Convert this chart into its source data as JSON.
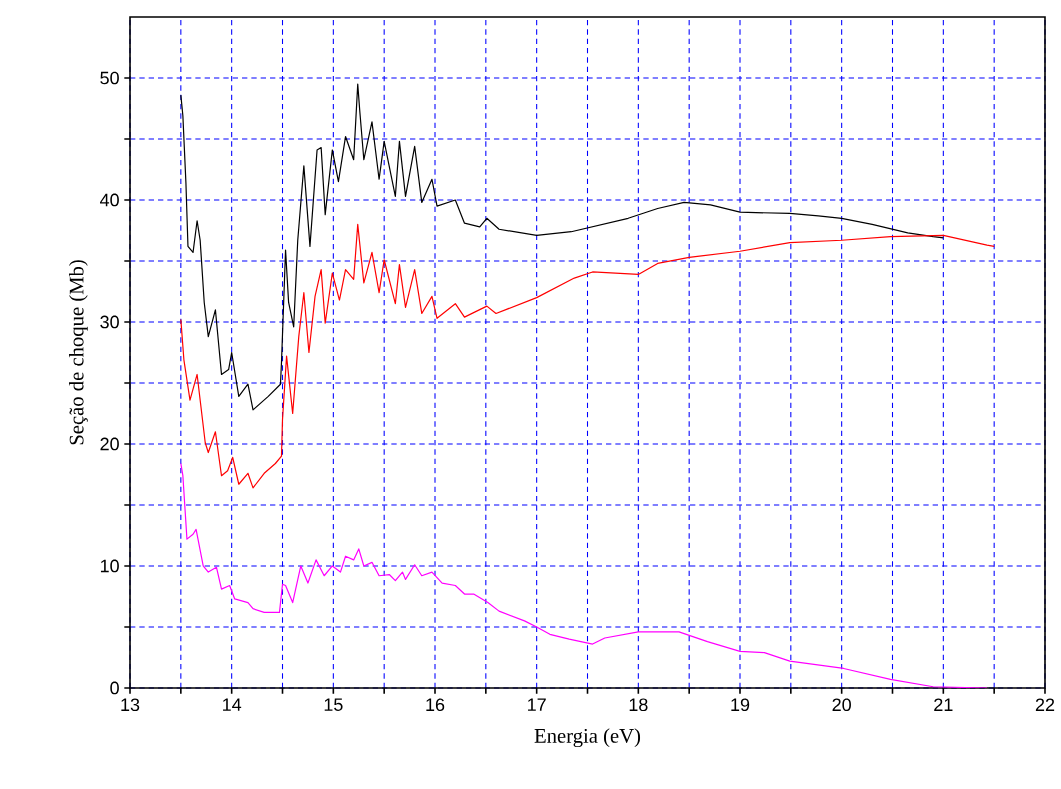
{
  "chart_data": {
    "type": "line",
    "xlabel": "Energia (eV)",
    "ylabel": "Seção de choque (Mb)",
    "xlim": [
      13,
      22
    ],
    "ylim": [
      0,
      55
    ],
    "xticks": [
      13,
      {
        "value": 13.5,
        "label": null
      },
      14,
      {
        "value": 14.5,
        "label": null
      },
      15,
      {
        "value": 15.5,
        "label": null
      },
      16,
      {
        "value": 16.5,
        "label": null
      },
      17,
      {
        "value": 17.5,
        "label": null
      },
      18,
      {
        "value": 18.5,
        "label": null
      },
      19,
      {
        "value": 19.5,
        "label": null
      },
      20,
      {
        "value": 20.5,
        "label": null
      },
      21,
      {
        "value": 21.5,
        "label": null
      },
      22
    ],
    "yticks": [
      0,
      {
        "value": 5,
        "label": null
      },
      10,
      {
        "value": 15,
        "label": null
      },
      20,
      {
        "value": 25,
        "label": null
      },
      30,
      {
        "value": 35,
        "label": null
      },
      40,
      {
        "value": 45,
        "label": null
      },
      50
    ],
    "grid": true,
    "marker": "none",
    "line_style": "solid",
    "series": [
      {
        "color": "#000000",
        "x": [
          13.5,
          13.52,
          13.55,
          13.57,
          13.62,
          13.66,
          13.69,
          13.73,
          13.77,
          13.84,
          13.9,
          13.97,
          14.0,
          14.07,
          14.16,
          14.21,
          14.36,
          14.48,
          14.49,
          14.53,
          14.56,
          14.61,
          14.65,
          14.71,
          14.77,
          14.84,
          14.88,
          14.92,
          14.99,
          15.05,
          15.12,
          15.2,
          15.24,
          15.26,
          15.3,
          15.38,
          15.45,
          15.5,
          15.61,
          15.65,
          15.71,
          15.8,
          15.87,
          15.97,
          16.02,
          16.2,
          16.29,
          16.44,
          16.51,
          16.63,
          17.0,
          17.34,
          17.9,
          18.19,
          18.45,
          18.71,
          19.0,
          19.49,
          19.77,
          20.0,
          20.3,
          20.65,
          20.9,
          21.0
        ],
        "values": [
          48.6,
          46.9,
          41.4,
          36.2,
          35.7,
          38.3,
          36.7,
          31.6,
          28.8,
          31.0,
          25.7,
          26.1,
          27.5,
          23.9,
          24.9,
          22.8,
          23.9,
          24.9,
          26.7,
          35.9,
          31.6,
          29.6,
          36.7,
          42.8,
          36.2,
          44.1,
          44.3,
          38.8,
          44.1,
          41.5,
          45.2,
          43.3,
          49.5,
          47.3,
          43.3,
          46.4,
          41.7,
          44.8,
          40.3,
          44.8,
          40.3,
          44.4,
          39.8,
          41.7,
          39.5,
          40.0,
          38.1,
          37.8,
          38.5,
          37.6,
          37.1,
          37.4,
          38.5,
          39.3,
          39.8,
          39.6,
          39.0,
          38.9,
          38.7,
          38.5,
          38.0,
          37.3,
          37.0,
          36.9
        ]
      },
      {
        "color": "#ff0000",
        "x": [
          13.5,
          13.53,
          13.59,
          13.66,
          13.72,
          13.74,
          13.77,
          13.84,
          13.9,
          13.96,
          14.01,
          14.07,
          14.16,
          14.21,
          14.32,
          14.43,
          14.49,
          14.5,
          14.54,
          14.6,
          14.66,
          14.71,
          14.76,
          14.82,
          14.88,
          14.92,
          14.99,
          15.06,
          15.12,
          15.2,
          15.24,
          15.3,
          15.38,
          15.45,
          15.5,
          15.61,
          15.65,
          15.71,
          15.8,
          15.87,
          15.97,
          16.02,
          16.2,
          16.29,
          16.51,
          16.6,
          17.0,
          17.37,
          17.55,
          18.0,
          18.19,
          18.5,
          19.0,
          19.49,
          20.0,
          20.48,
          21.0,
          21.43,
          21.5
        ],
        "values": [
          30.2,
          26.9,
          23.6,
          25.7,
          21.5,
          20.1,
          19.3,
          21.0,
          17.4,
          17.8,
          18.9,
          16.7,
          17.6,
          16.4,
          17.6,
          18.4,
          19.0,
          22.0,
          27.2,
          22.5,
          28.8,
          32.4,
          27.5,
          32.1,
          34.3,
          29.9,
          34.0,
          31.8,
          34.3,
          33.5,
          38.0,
          33.2,
          35.7,
          32.4,
          35.1,
          31.5,
          34.7,
          31.2,
          34.3,
          30.7,
          32.1,
          30.3,
          31.5,
          30.4,
          31.3,
          30.7,
          32.0,
          33.6,
          34.1,
          33.9,
          34.8,
          35.3,
          35.8,
          36.5,
          36.7,
          37.0,
          37.1,
          36.3,
          36.2
        ]
      },
      {
        "color": "#ff00ff",
        "x": [
          13.5,
          13.52,
          13.56,
          13.62,
          13.65,
          13.72,
          13.77,
          13.85,
          13.9,
          13.98,
          14.03,
          14.16,
          14.21,
          14.32,
          14.47,
          14.5,
          14.53,
          14.6,
          14.68,
          14.75,
          14.83,
          14.91,
          14.99,
          15.07,
          15.12,
          15.2,
          15.25,
          15.3,
          15.38,
          15.45,
          15.55,
          15.61,
          15.68,
          15.71,
          15.8,
          15.87,
          15.97,
          16.07,
          16.2,
          16.29,
          16.38,
          16.52,
          16.63,
          16.88,
          17.0,
          17.13,
          17.32,
          17.55,
          17.67,
          18.0,
          18.4,
          18.68,
          19.0,
          19.24,
          19.49,
          20.02,
          20.48,
          20.9,
          21.43
        ],
        "values": [
          18.4,
          17.4,
          12.2,
          12.6,
          13.0,
          10.0,
          9.5,
          9.9,
          8.1,
          8.4,
          7.3,
          7.0,
          6.5,
          6.2,
          6.2,
          8.5,
          8.4,
          7.0,
          10.0,
          8.6,
          10.5,
          9.2,
          10.0,
          9.5,
          10.8,
          10.5,
          11.4,
          10.0,
          10.3,
          9.2,
          9.3,
          8.8,
          9.5,
          8.9,
          10.1,
          9.2,
          9.5,
          8.6,
          8.4,
          7.7,
          7.7,
          7.0,
          6.3,
          5.5,
          5.0,
          4.4,
          4.0,
          3.6,
          4.1,
          4.6,
          4.6,
          3.8,
          3.0,
          2.9,
          2.2,
          1.6,
          0.7,
          0.1,
          0.0
        ]
      }
    ]
  }
}
